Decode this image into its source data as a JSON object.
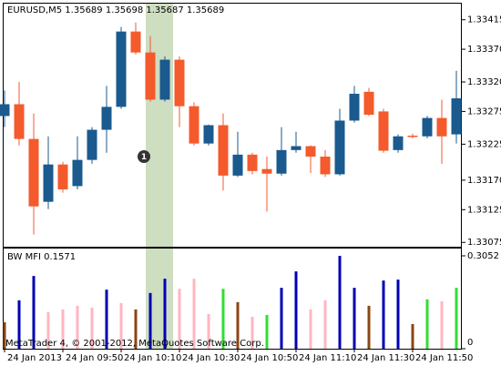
{
  "chart_data": [
    {
      "type": "candlestick",
      "title": "EURUSD,M5  1.35689 1.35698 1.35687 1.35689",
      "annotation": "1",
      "categories": [
        "24 Jan 2013",
        null,
        null,
        null,
        "24 Jan 09:50",
        null,
        null,
        null,
        "24 Jan 10:10",
        null,
        null,
        null,
        "24 Jan 10:30",
        null,
        null,
        null,
        "24 Jan 10:50",
        null,
        null,
        null,
        "24 Jan 11:10",
        null,
        null,
        null,
        "24 Jan 11:30",
        null,
        null,
        null,
        "24 Jan 11:50",
        null,
        null,
        null
      ],
      "open": [
        1.33268,
        1.33286,
        1.33233,
        1.33137,
        1.33194,
        1.33161,
        1.33201,
        1.33247,
        1.33282,
        1.33397,
        1.33365,
        1.33293,
        1.33354,
        1.33283,
        1.33226,
        1.33254,
        1.33177,
        1.33209,
        1.33187,
        1.3318,
        1.33216,
        1.33222,
        1.33206,
        1.33179,
        1.33261,
        1.33305,
        1.33275,
        1.33216,
        1.33238,
        1.33237,
        1.33265,
        1.3324
      ],
      "high": [
        1.33307,
        1.3332,
        1.33272,
        1.33237,
        1.33198,
        1.33237,
        1.33251,
        1.33314,
        1.33404,
        1.33411,
        1.3339,
        1.33359,
        1.33359,
        1.33289,
        1.33255,
        1.33272,
        1.33244,
        1.33212,
        1.33206,
        1.33251,
        1.33244,
        1.33223,
        1.33216,
        1.33279,
        1.33314,
        1.33311,
        1.33279,
        1.3324,
        1.33241,
        1.33268,
        1.33293,
        1.33337
      ],
      "low": [
        1.33251,
        1.33223,
        1.33087,
        1.33126,
        1.33151,
        1.33156,
        1.33195,
        1.33212,
        1.33279,
        1.33362,
        1.3329,
        1.3329,
        1.33251,
        1.33223,
        1.33223,
        1.33154,
        1.33175,
        1.33179,
        1.33122,
        1.33177,
        1.33212,
        1.33181,
        1.33175,
        1.33177,
        1.33258,
        1.33268,
        1.33212,
        1.33212,
        1.33234,
        1.33234,
        1.33195,
        1.33226
      ],
      "close": [
        1.33286,
        1.33233,
        1.3313,
        1.33194,
        1.33156,
        1.33201,
        1.33247,
        1.33282,
        1.33397,
        1.33365,
        1.33293,
        1.33354,
        1.33283,
        1.33226,
        1.33254,
        1.33177,
        1.33209,
        1.33184,
        1.3318,
        1.33216,
        1.33222,
        1.33206,
        1.33179,
        1.33261,
        1.33302,
        1.3327,
        1.33215,
        1.33237,
        1.33236,
        1.33265,
        1.33237,
        1.33295
      ],
      "up_color": "#1a5a8e",
      "down_color": "#f45a2c",
      "ylim": [
        1.33067,
        1.33441
      ],
      "yticks": [
        1.33415,
        {
          "value": 1.3337,
          "label": "1.33370"
        },
        {
          "value": 1.3332,
          "label": "1.33320"
        },
        1.33275,
        1.33225,
        {
          "value": 1.3317,
          "label": "1.33170"
        },
        1.33125,
        1.33075
      ]
    },
    {
      "type": "bar",
      "title": "BW MFI 0.1571",
      "values": [
        0.087,
        0.159,
        0.239,
        0.12,
        0.129,
        0.141,
        0.135,
        0.194,
        0.15,
        0.129,
        0.183,
        0.23,
        0.197,
        0.23,
        0.114,
        0.197,
        0.153,
        0.105,
        0.111,
        0.2,
        0.254,
        0.129,
        0.159,
        0.3052,
        0.2,
        0.141,
        0.224,
        0.227,
        0.081,
        0.162,
        0.156,
        0.2
      ],
      "colors": [
        "#8b4513",
        "#0000b4",
        "#0000b4",
        "#ffb6c1",
        "#ffb6c1",
        "#ffb6c1",
        "#ffb6c1",
        "#0000b4",
        "#ffb6c1",
        "#8b4513",
        "#0000b4",
        "#0000b4",
        "#ffb6c1",
        "#ffb6c1",
        "#ffb6c1",
        "#33dd33",
        "#8b4513",
        "#ffb6c1",
        "#33dd33",
        "#0000b4",
        "#0000b4",
        "#ffb6c1",
        "#ffb6c1",
        "#0000b4",
        "#0000b4",
        "#8b4513",
        "#0000b4",
        "#0000b4",
        "#8b4513",
        "#33dd33",
        "#ffb6c1",
        "#33dd33"
      ],
      "ylim": [
        0,
        0.3261
      ],
      "yticks": [
        0.3052,
        0
      ]
    }
  ],
  "footer": "MetaTrader 4, © 2001-2012, MetaQuotes Software Corp."
}
